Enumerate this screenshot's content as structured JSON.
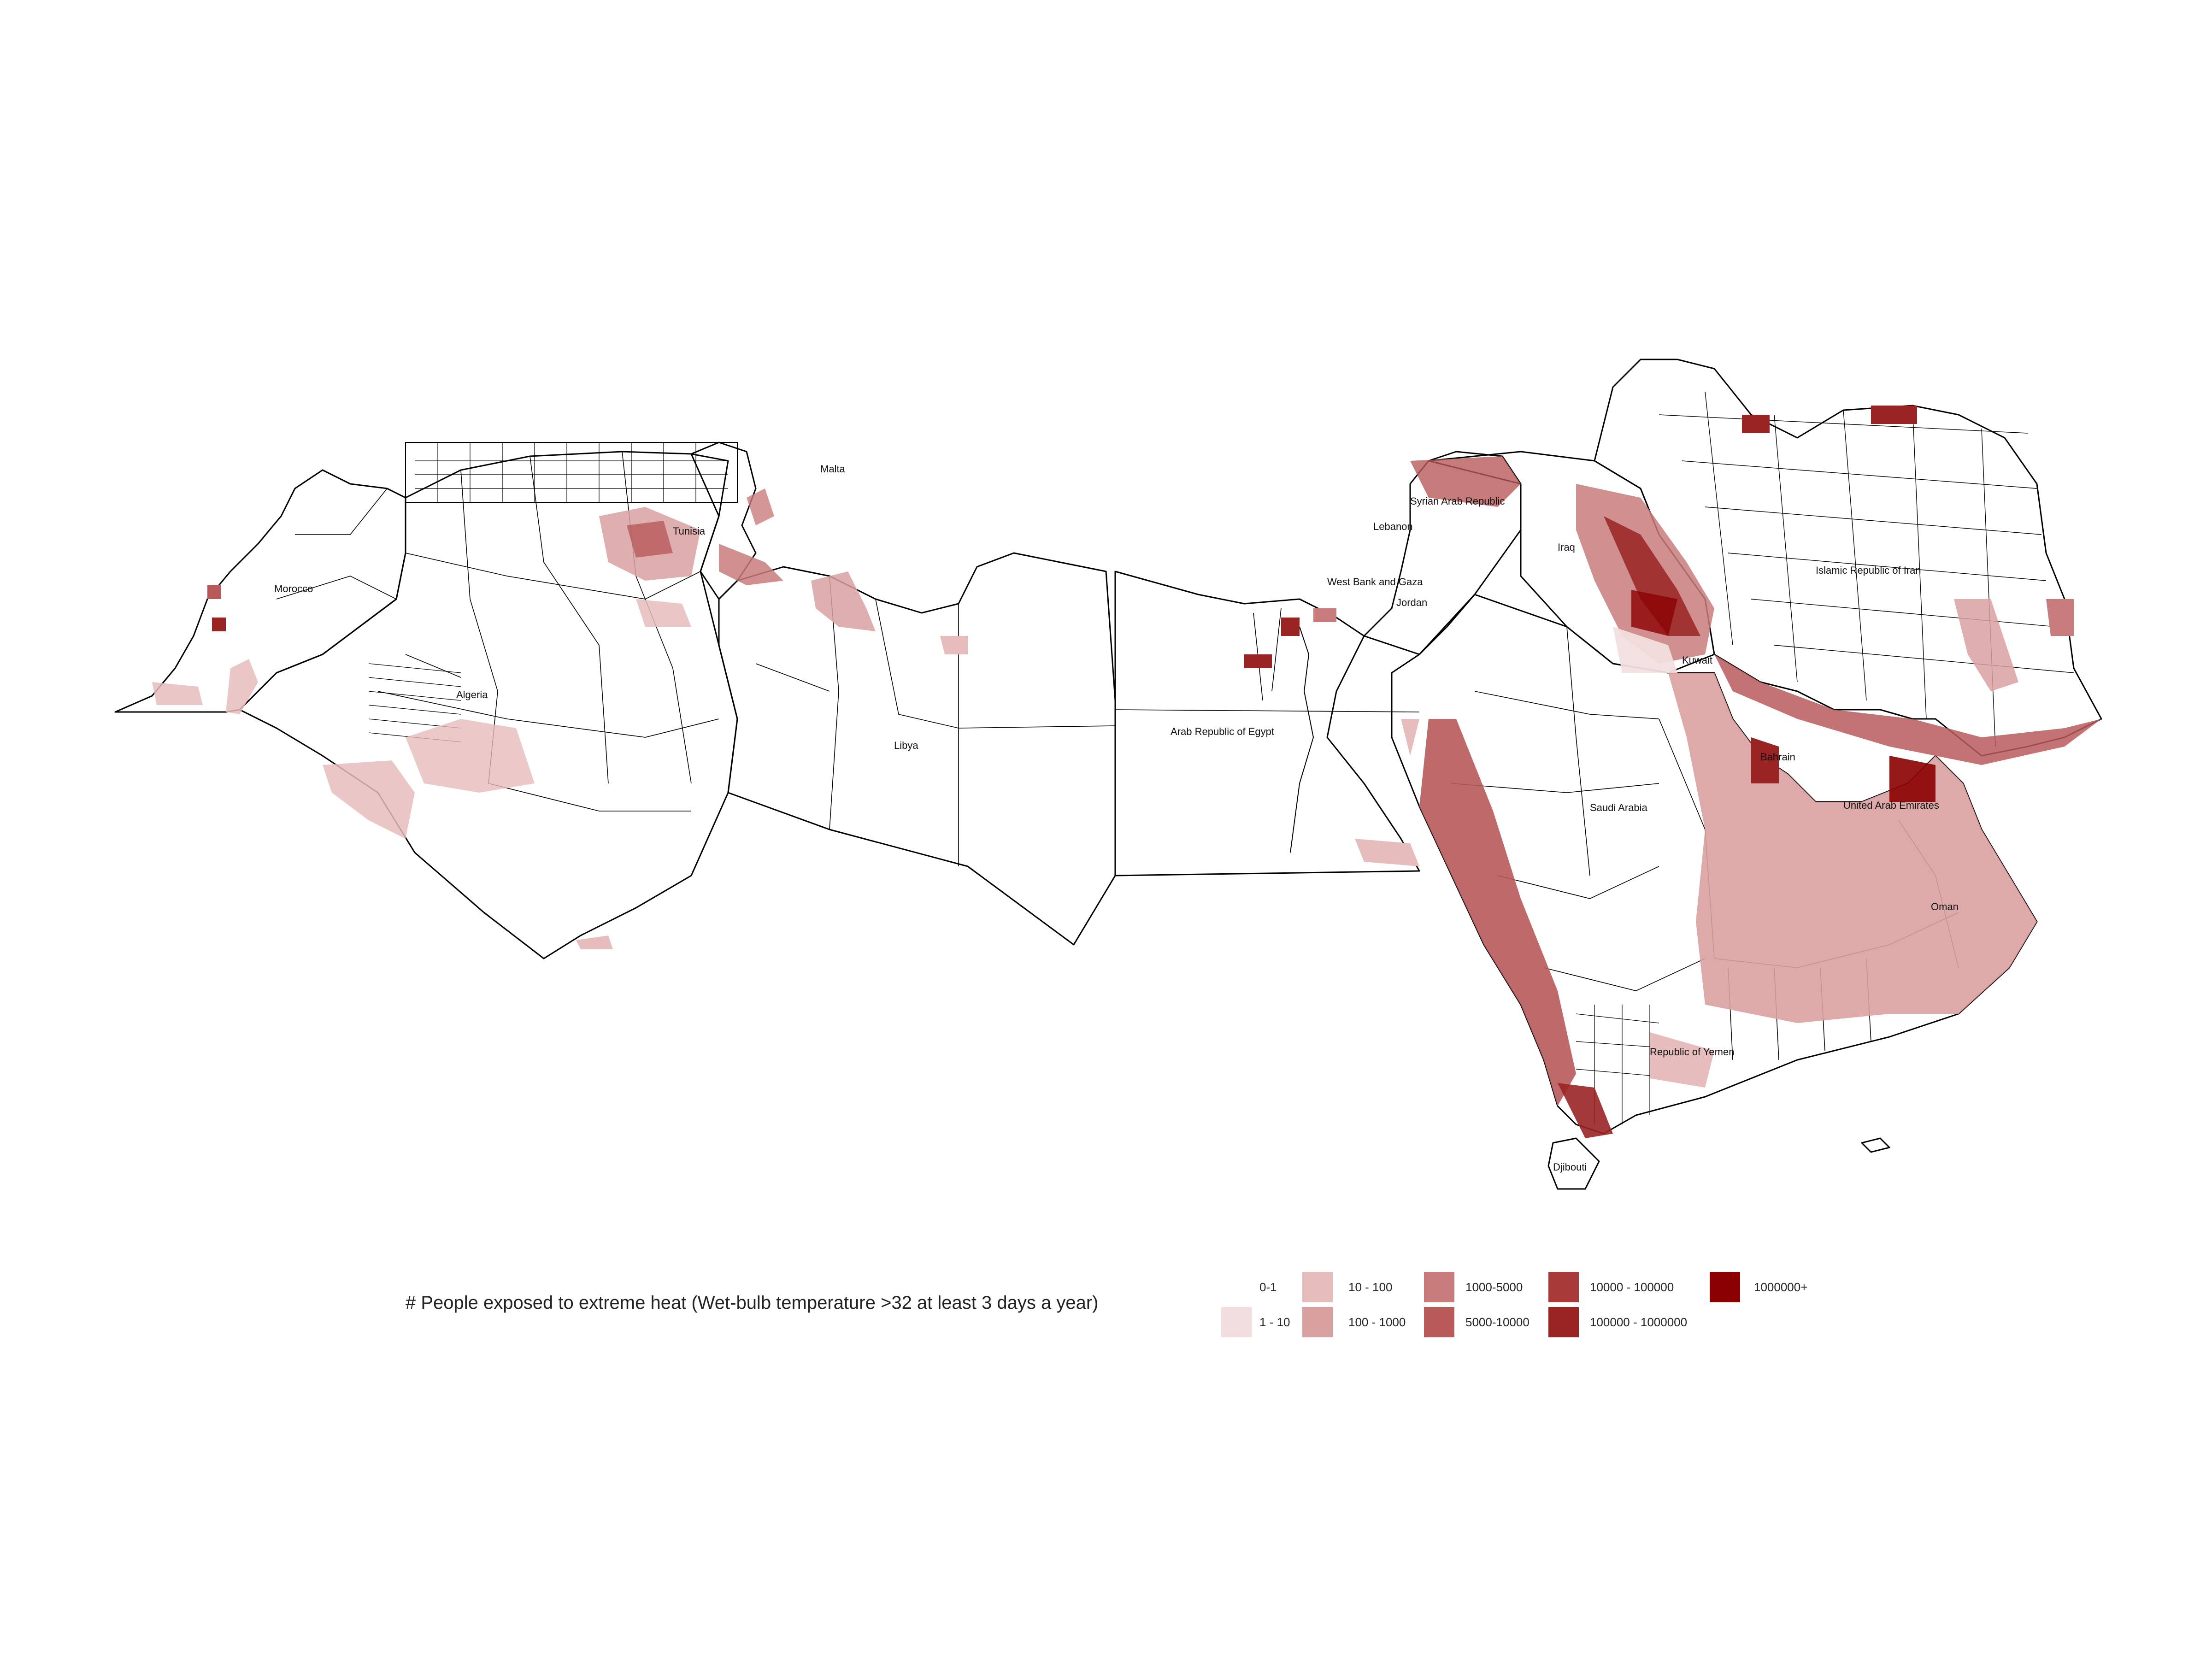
{
  "map": {
    "labels": {
      "malta": "Malta",
      "morocco": "Morocco",
      "algeria": "Algeria",
      "tunisia": "Tunisia",
      "libya": "Libya",
      "egypt": "Arab Republic of Egypt",
      "syria": "Syrian Arab Republic",
      "lebanon": "Lebanon",
      "west_bank": "West Bank and Gaza",
      "jordan": "Jordan",
      "iraq": "Iraq",
      "iran": "Islamic Republic of Iran",
      "kuwait": "Kuwait",
      "bahrain": "Bahrain",
      "saudi": "Saudi Arabia",
      "uae": "United Arab Emirates",
      "oman": "Oman",
      "yemen": "Republic of Yemen",
      "djibouti": "Djibouti"
    }
  },
  "legend": {
    "title": "# People exposed to extreme heat (Wet-bulb temperature >32 at least 3 days a year)",
    "items": [
      {
        "label": "0-1",
        "color": "#ffffff"
      },
      {
        "label": "1 - 10",
        "color": "#f2dede"
      },
      {
        "label": "10 - 100",
        "color": "#e6bcbc"
      },
      {
        "label": "100 - 1000",
        "color": "#d9a0a0"
      },
      {
        "label": "1000-5000",
        "color": "#c97c7c"
      },
      {
        "label": "5000-10000",
        "color": "#b85a5a"
      },
      {
        "label": "10000 - 100000",
        "color": "#a83a3a"
      },
      {
        "label": "100000 - 1000000",
        "color": "#9a2323"
      },
      {
        "label": "1000000+",
        "color": "#8b0000"
      }
    ]
  }
}
